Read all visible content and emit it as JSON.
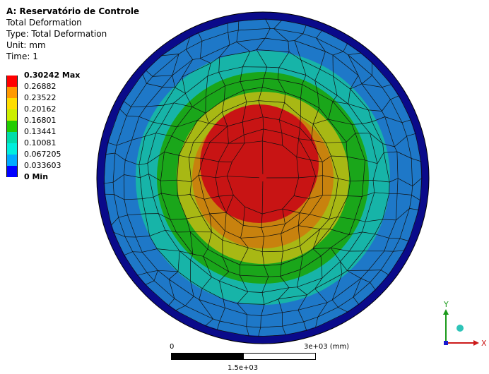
{
  "header": {
    "title": "A: Reservatório de Controle",
    "line1": "Total Deformation",
    "line2": "Type: Total Deformation",
    "line3": "Unit: mm",
    "line4": "Time: 1"
  },
  "legend": [
    {
      "label": "0.30242 Max",
      "color": "#ff0000",
      "bold": true
    },
    {
      "label": "0.26882",
      "color": "#ff9900",
      "bold": false
    },
    {
      "label": "0.23522",
      "color": "#ffdd00",
      "bold": false
    },
    {
      "label": "0.20162",
      "color": "#ccee00",
      "bold": false
    },
    {
      "label": "0.16801",
      "color": "#22cc00",
      "bold": false
    },
    {
      "label": "0.13441",
      "color": "#00ddaa",
      "bold": false
    },
    {
      "label": "0.10081",
      "color": "#00eedd",
      "bold": false
    },
    {
      "label": "0.067205",
      "color": "#00aaff",
      "bold": false
    },
    {
      "label": "0.033603",
      "color": "#0000ff",
      "bold": false
    },
    {
      "label": "0 Min",
      "color": "#0000ff",
      "bold": true
    }
  ],
  "plot_colors": {
    "rim": "#0a0a8a",
    "band_outer": "#1e78c8",
    "band_cyan": "#17b4a8",
    "band_green": "#1aa61a",
    "band_yellowgreen": "#a8b814",
    "band_orange": "#c8820e",
    "center_red": "#c81414"
  },
  "scale": {
    "zero": "0",
    "end": "3e+03 (mm)",
    "mid": "1.5e+03"
  },
  "triad": {
    "x_label": "X",
    "y_label": "Y"
  }
}
